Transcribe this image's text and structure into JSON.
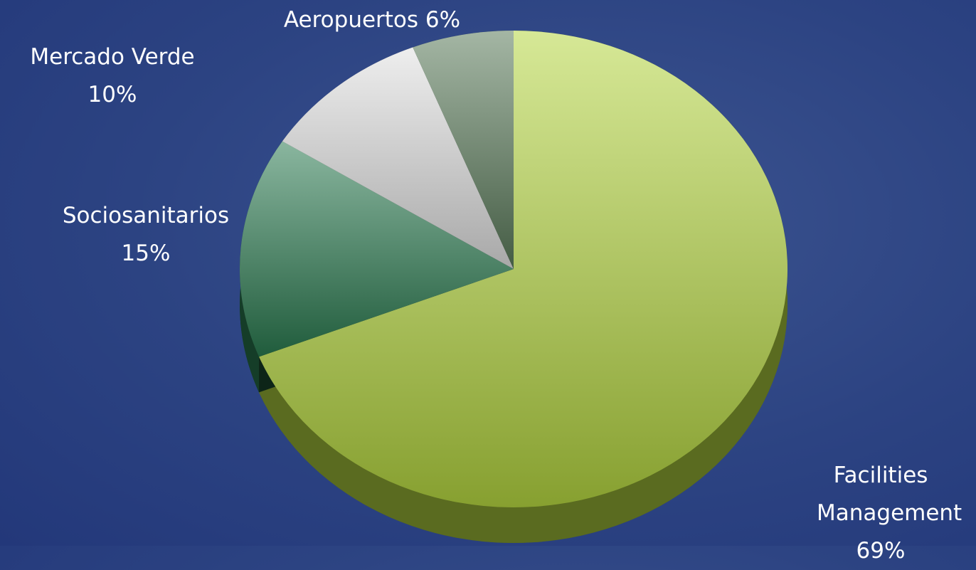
{
  "chart_data": {
    "type": "pie",
    "categories": [
      "Facilities Management",
      "Sociosanitarios",
      "Mercado Verde",
      "Aeropuertos"
    ],
    "values": [
      69,
      15,
      10,
      6
    ],
    "value_labels": [
      "69%",
      "15%",
      "10%",
      "6%"
    ],
    "colors": [
      "#b4d540",
      "#2a7a50",
      "#e0e0e0",
      "#5a7a5a"
    ]
  }
}
